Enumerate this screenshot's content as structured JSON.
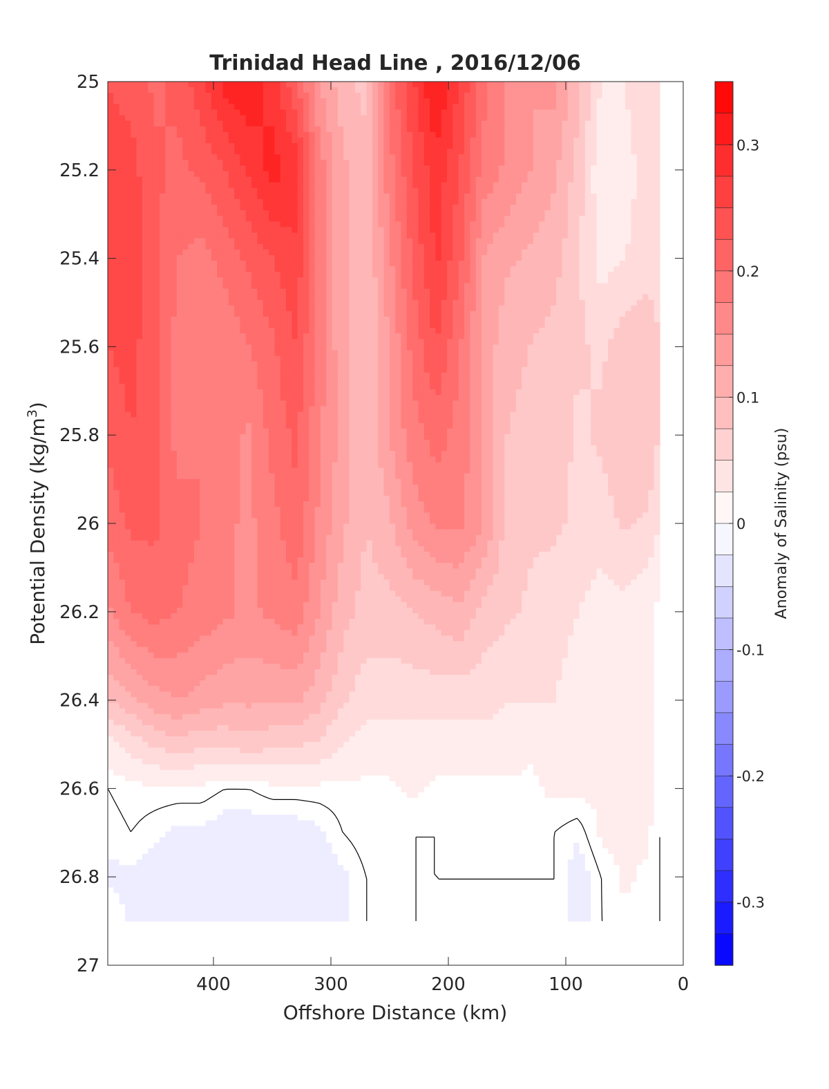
{
  "chart_data": {
    "type": "heatmap",
    "subtype": "filled-contour",
    "title": "Trinidad Head Line , 2016/12/06",
    "xlabel": "Offshore Distance (km)",
    "ylabel_main": "Potential Density (kg/m",
    "ylabel_sup": "3",
    "ylabel_end": ")",
    "xlim": [
      490,
      0
    ],
    "x_reversed": true,
    "ylim": [
      25,
      27
    ],
    "y_reversed": true,
    "x_ticks": [
      400,
      300,
      200,
      100,
      0
    ],
    "x_tick_labels": [
      "400",
      "300",
      "200",
      "100",
      "0"
    ],
    "y_ticks": [
      25,
      25.2,
      25.4,
      25.6,
      25.8,
      26,
      26.2,
      26.4,
      26.6,
      26.8,
      27
    ],
    "y_tick_labels": [
      "25",
      "25.2",
      "25.4",
      "25.6",
      "25.8",
      "26",
      "26.2",
      "26.4",
      "26.6",
      "26.8",
      "27"
    ],
    "data_x_range": [
      490,
      20
    ],
    "data_y_range": [
      25,
      26.9
    ],
    "grid": false,
    "colorbar": {
      "label": "Anomaly of Salinity (psu)",
      "min": -0.35,
      "max": 0.35,
      "step": 0.025,
      "ticks": [
        0.3,
        0.2,
        0.1,
        0,
        -0.1,
        -0.2,
        -0.3
      ],
      "tick_labels": [
        "0.3",
        "0.2",
        "0.1",
        "0",
        "-0.1",
        "-0.2",
        "-0.3"
      ],
      "colormap": "blue-white-red",
      "neg_color": "#0000ff",
      "zero_color": "#ffffff",
      "pos_color": "#ff0000"
    },
    "contour_line": {
      "level": 0,
      "color": "#000000"
    },
    "profiles_x": [
      490,
      470,
      450,
      430,
      410,
      390,
      370,
      350,
      330,
      310,
      290,
      270,
      250,
      230,
      210,
      190,
      170,
      150,
      130,
      110,
      90,
      70,
      50,
      30,
      20
    ],
    "depth_y": [
      25.0,
      25.2,
      25.4,
      25.6,
      25.8,
      26.0,
      26.2,
      26.4,
      26.5,
      26.6,
      26.7,
      26.8,
      26.9
    ],
    "values": [
      [
        0.24,
        0.23,
        0.21,
        0.22,
        0.26,
        0.3,
        0.31,
        0.28,
        0.22,
        0.14,
        0.1,
        0.08,
        0.2,
        0.26,
        0.32,
        0.26,
        0.2,
        0.16,
        0.14,
        0.15,
        0.1,
        0.04,
        0.04,
        0.06,
        0.05
      ],
      [
        0.25,
        0.25,
        0.22,
        0.21,
        0.22,
        0.24,
        0.27,
        0.3,
        0.28,
        0.18,
        0.12,
        0.1,
        0.18,
        0.24,
        0.28,
        0.24,
        0.18,
        0.16,
        0.14,
        0.12,
        0.08,
        0.02,
        0.03,
        0.05,
        0.04
      ],
      [
        0.24,
        0.26,
        0.22,
        0.19,
        0.18,
        0.2,
        0.22,
        0.24,
        0.26,
        0.18,
        0.12,
        0.09,
        0.16,
        0.22,
        0.27,
        0.22,
        0.14,
        0.12,
        0.11,
        0.1,
        0.07,
        0.03,
        0.04,
        0.05,
        0.04
      ],
      [
        0.24,
        0.25,
        0.22,
        0.18,
        0.17,
        0.17,
        0.19,
        0.21,
        0.24,
        0.18,
        0.12,
        0.09,
        0.14,
        0.2,
        0.24,
        0.19,
        0.13,
        0.1,
        0.09,
        0.08,
        0.07,
        0.06,
        0.08,
        0.09,
        0.07
      ],
      [
        0.22,
        0.24,
        0.22,
        0.18,
        0.19,
        0.18,
        0.16,
        0.2,
        0.22,
        0.17,
        0.13,
        0.09,
        0.14,
        0.18,
        0.2,
        0.18,
        0.14,
        0.09,
        0.08,
        0.08,
        0.06,
        0.07,
        0.09,
        0.09,
        0.06
      ],
      [
        0.2,
        0.22,
        0.22,
        0.2,
        0.19,
        0.17,
        0.16,
        0.18,
        0.21,
        0.16,
        0.12,
        0.09,
        0.11,
        0.15,
        0.17,
        0.17,
        0.14,
        0.08,
        0.07,
        0.07,
        0.06,
        0.05,
        0.07,
        0.06,
        0.04
      ],
      [
        0.16,
        0.19,
        0.2,
        0.19,
        0.18,
        0.17,
        0.16,
        0.17,
        0.18,
        0.14,
        0.1,
        0.08,
        0.08,
        0.09,
        0.1,
        0.11,
        0.08,
        0.07,
        0.06,
        0.05,
        0.04,
        0.03,
        0.03,
        0.02,
        0.01
      ],
      [
        0.09,
        0.11,
        0.13,
        0.14,
        0.13,
        0.12,
        0.12,
        0.12,
        0.12,
        0.1,
        0.07,
        0.05,
        0.05,
        0.05,
        0.05,
        0.05,
        0.05,
        0.04,
        0.04,
        0.04,
        0.03,
        0.03,
        0.02,
        0.02,
        0.01
      ],
      [
        0.03,
        0.05,
        0.07,
        0.08,
        0.07,
        0.07,
        0.08,
        0.07,
        0.07,
        0.06,
        0.04,
        0.03,
        0.03,
        0.03,
        0.03,
        0.03,
        0.03,
        0.03,
        0.02,
        0.02,
        0.02,
        0.02,
        0.02,
        0.02,
        0.01
      ],
      [
        0.0,
        0.01,
        0.01,
        0.01,
        0.01,
        0.0,
        0.0,
        0.01,
        0.01,
        0.01,
        0.01,
        0.01,
        0.01,
        0.02,
        0.01,
        0.01,
        0.01,
        0.01,
        0.01,
        0.02,
        0.02,
        0.02,
        0.02,
        0.02,
        0.01
      ],
      [
        -0.01,
        0.0,
        -0.01,
        -0.02,
        -0.02,
        -0.03,
        -0.03,
        -0.03,
        -0.03,
        -0.02,
        0.0,
        0.01,
        0.01,
        0.0,
        0.0,
        0.01,
        0.01,
        0.0,
        0.01,
        0.0,
        -0.01,
        0.02,
        0.02,
        0.02,
        0.0
      ],
      [
        -0.02,
        -0.02,
        -0.03,
        -0.03,
        -0.03,
        -0.03,
        -0.03,
        -0.03,
        -0.03,
        -0.03,
        -0.02,
        0.0,
        0.01,
        0.0,
        0.0,
        0.0,
        0.0,
        0.0,
        0.0,
        0.0,
        -0.03,
        0.0,
        0.02,
        0.01,
        0.0
      ],
      [
        0.0,
        -0.02,
        -0.03,
        -0.03,
        -0.03,
        -0.03,
        -0.03,
        -0.03,
        -0.03,
        -0.03,
        -0.02,
        0.0,
        0.01,
        0.0,
        0.0,
        0.0,
        0.0,
        0.0,
        0.0,
        0.0,
        -0.03,
        0.0,
        0.01,
        0.01,
        0.0
      ]
    ]
  }
}
